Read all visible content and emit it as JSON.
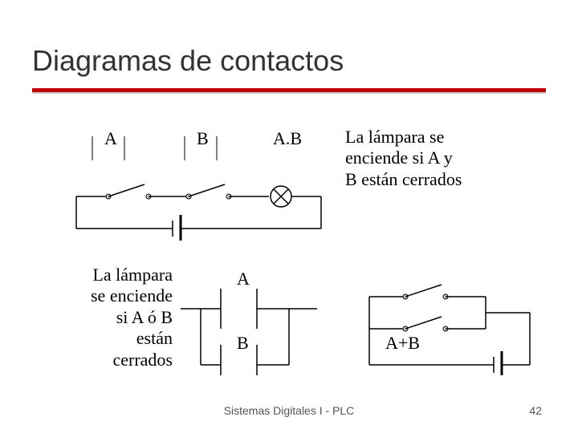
{
  "title": "Diagramas de contactos",
  "diagram1": {
    "labelA": "A",
    "labelB": "B",
    "labelAB": "A.B",
    "desc": "La lámpara se\nenciende si A y\nB están cerrados",
    "stroke": "#000000",
    "fill_switch": "#d0d0d0",
    "lamp_fill": "#ffffff"
  },
  "diagram2": {
    "desc": "La lámpara\nse enciende\nsi A ó B\nestán\ncerrados",
    "labelA": "A",
    "labelB": "B",
    "labelAplusB": "A+B",
    "stroke": "#000000",
    "fill_switch": "#d0d0d0"
  },
  "footer": {
    "text": "Sistemas Digitales I   -   PLC",
    "page": "42"
  },
  "colors": {
    "title": "#333333",
    "redbar": "#be0000",
    "graybar": "#cfcfcf",
    "bg": "#ffffff"
  }
}
